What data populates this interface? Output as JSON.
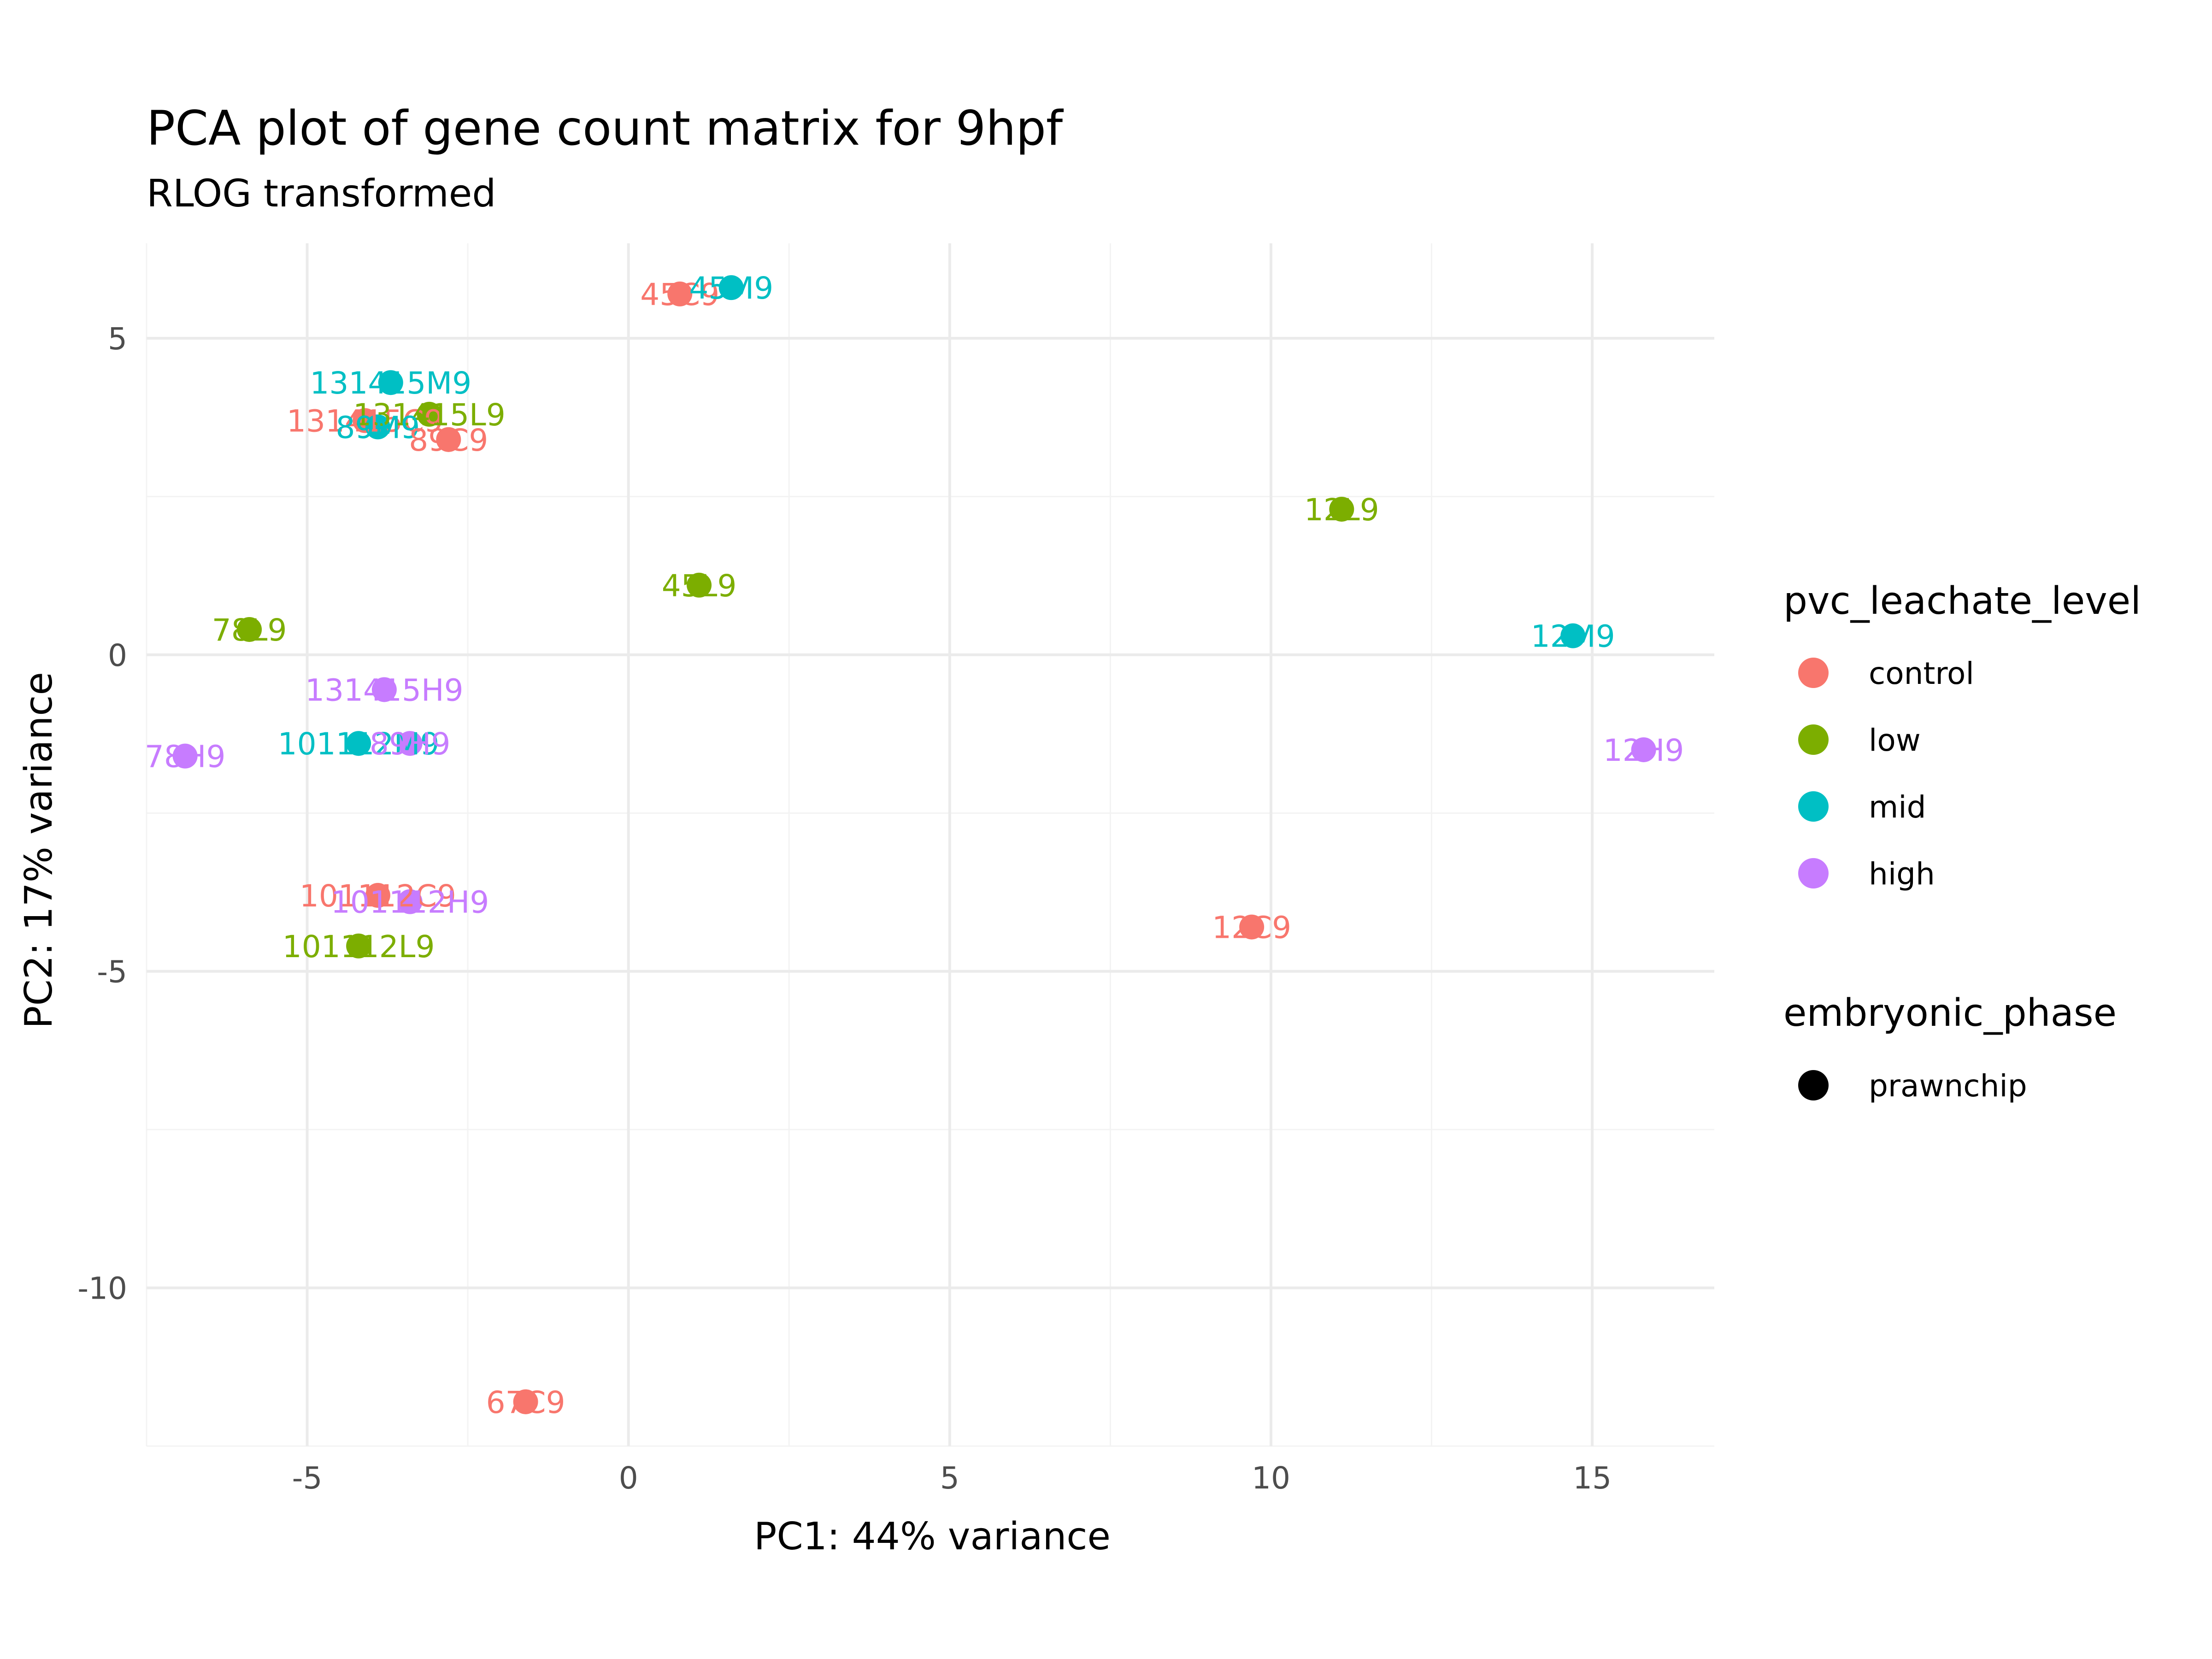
{
  "chart_data": {
    "type": "scatter",
    "title": "PCA plot of gene count matrix for 9hpf",
    "subtitle": "RLOG transformed",
    "xlabel": "PC1: 44% variance",
    "ylabel": "PC2: 17% variance",
    "xlim": [
      -7.5,
      16.9
    ],
    "ylim": [
      -12.5,
      6.5
    ],
    "x_ticks": [
      -5,
      0,
      5,
      10,
      15
    ],
    "y_ticks": [
      -10,
      -5,
      0,
      5
    ],
    "x_tick_labels": [
      "-5",
      "0",
      "5",
      "10",
      "15"
    ],
    "y_tick_labels": [
      "-10",
      "-5",
      "0",
      "5"
    ],
    "grid": true,
    "legend_position": "right",
    "colors": {
      "control": "#F8766D",
      "low": "#7CAE00",
      "mid": "#00BFC4",
      "high": "#C77CFF"
    },
    "legend": {
      "color_title": "pvc_leachate_level",
      "color_entries": [
        "control",
        "low",
        "mid",
        "high"
      ],
      "shape_title": "embryonic_phase",
      "shape_entries": [
        "prawnchip"
      ],
      "shape_color": "#000000"
    },
    "points": [
      {
        "label": "45C9",
        "level": "control",
        "x": 0.8,
        "y": 5.7
      },
      {
        "label": "45M9",
        "level": "mid",
        "x": 1.6,
        "y": 5.8
      },
      {
        "label": "131415M9",
        "level": "mid",
        "x": -3.7,
        "y": 4.3
      },
      {
        "label": "131415C9",
        "level": "control",
        "x": -4.1,
        "y": 3.7
      },
      {
        "label": "131415L9",
        "level": "low",
        "x": -3.1,
        "y": 3.8
      },
      {
        "label": "89M9",
        "level": "mid",
        "x": -3.9,
        "y": 3.6
      },
      {
        "label": "89C9",
        "level": "control",
        "x": -2.8,
        "y": 3.4
      },
      {
        "label": "12L9",
        "level": "low",
        "x": 11.1,
        "y": 2.3
      },
      {
        "label": "45L9",
        "level": "low",
        "x": 1.1,
        "y": 1.1
      },
      {
        "label": "78L9",
        "level": "low",
        "x": -5.9,
        "y": 0.4
      },
      {
        "label": "12M9",
        "level": "mid",
        "x": 14.7,
        "y": 0.3
      },
      {
        "label": "131415H9",
        "level": "high",
        "x": -3.8,
        "y": -0.55
      },
      {
        "label": "101112M9",
        "level": "mid",
        "x": -4.2,
        "y": -1.4
      },
      {
        "label": "89H9",
        "level": "high",
        "x": -3.4,
        "y": -1.4
      },
      {
        "label": "78H9",
        "level": "high",
        "x": -6.9,
        "y": -1.6
      },
      {
        "label": "12H9",
        "level": "high",
        "x": 15.8,
        "y": -1.5
      },
      {
        "label": "101112C9",
        "level": "control",
        "x": -3.9,
        "y": -3.8
      },
      {
        "label": "101112H9",
        "level": "high",
        "x": -3.4,
        "y": -3.9
      },
      {
        "label": "12C9",
        "level": "control",
        "x": 9.7,
        "y": -4.3
      },
      {
        "label": "101112L9",
        "level": "low",
        "x": -4.2,
        "y": -4.6
      },
      {
        "label": "67C9",
        "level": "control",
        "x": -1.6,
        "y": -11.8
      }
    ]
  }
}
